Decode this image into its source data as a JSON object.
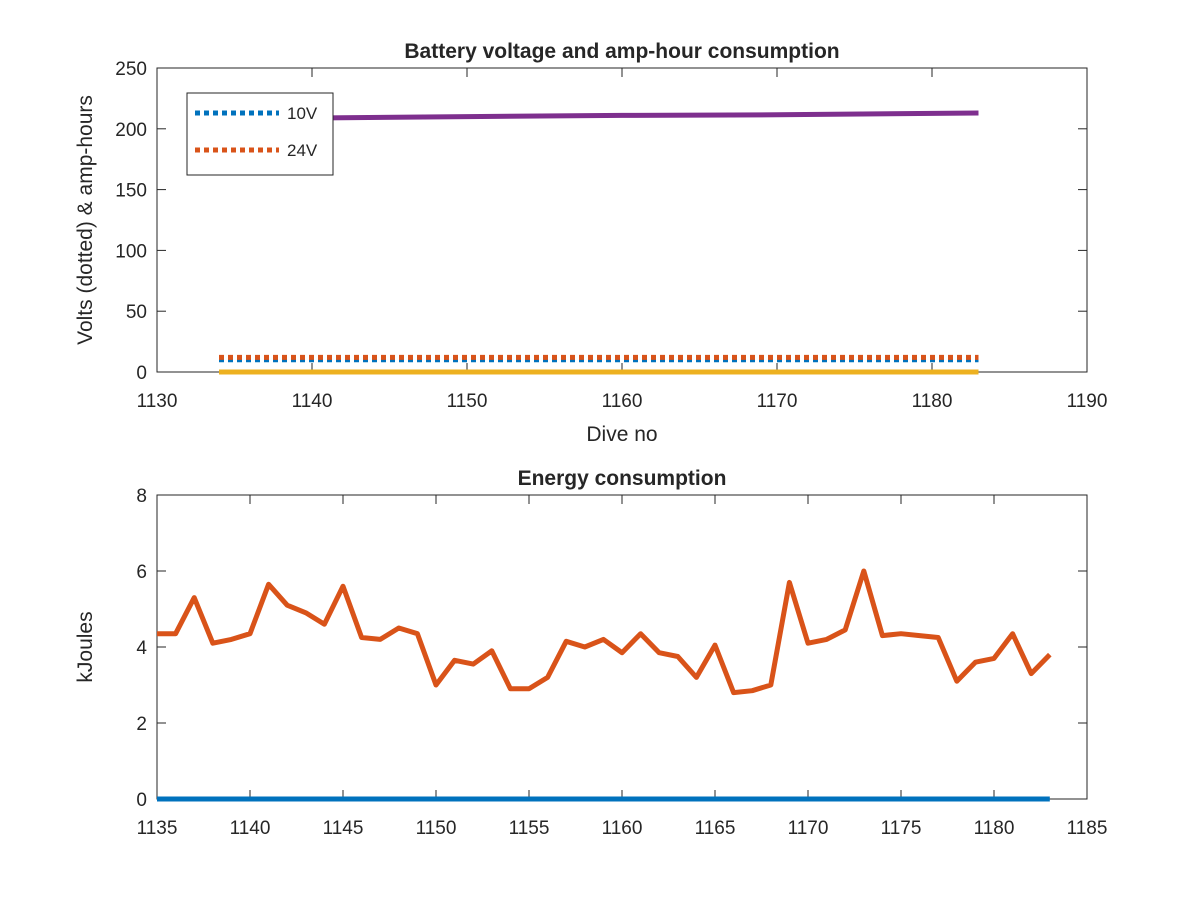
{
  "chart_data": [
    {
      "type": "line",
      "title": "Battery voltage and amp-hour consumption",
      "xlabel": "Dive no",
      "ylabel": "Volts (dotted) & amp-hours",
      "xlim": [
        1130,
        1190
      ],
      "ylim": [
        0,
        250
      ],
      "xticks": [
        "1130",
        "1140",
        "1150",
        "1160",
        "1170",
        "1180",
        "1190"
      ],
      "yticks": [
        "0",
        "50",
        "100",
        "150",
        "200",
        "250"
      ],
      "legend_position": "top-left",
      "series": [
        {
          "name": "10V",
          "color": "#0072BD",
          "style": "dotted",
          "x": [
            1134,
            1183
          ],
          "y": [
            10,
            10
          ]
        },
        {
          "name": "24V",
          "color": "#D95319",
          "style": "dotted",
          "x": [
            1134,
            1183
          ],
          "y": [
            12,
            12
          ]
        },
        {
          "color": "#EDB120",
          "style": "solid",
          "x": [
            1134,
            1183
          ],
          "y": [
            0,
            0
          ]
        },
        {
          "color": "#7E2F8E",
          "style": "solid",
          "x": [
            1141,
            1150,
            1160,
            1170,
            1183
          ],
          "y": [
            209,
            210,
            211,
            211.5,
            213
          ]
        }
      ]
    },
    {
      "type": "line",
      "title": "Energy consumption",
      "xlabel": "",
      "ylabel": "kJoules",
      "xlim": [
        1135,
        1185
      ],
      "ylim": [
        0,
        8
      ],
      "xticks": [
        "1135",
        "1140",
        "1145",
        "1150",
        "1155",
        "1160",
        "1165",
        "1170",
        "1175",
        "1180",
        "1185"
      ],
      "yticks": [
        "0",
        "2",
        "4",
        "6",
        "8"
      ],
      "series": [
        {
          "color": "#0072BD",
          "style": "solid",
          "x": [
            1135,
            1183
          ],
          "y": [
            0,
            0
          ]
        },
        {
          "color": "#D95319",
          "style": "solid",
          "x": [
            1135,
            1136,
            1137,
            1138,
            1139,
            1140,
            1141,
            1142,
            1143,
            1144,
            1145,
            1146,
            1147,
            1148,
            1149,
            1150,
            1151,
            1152,
            1153,
            1154,
            1155,
            1156,
            1157,
            1158,
            1159,
            1160,
            1161,
            1162,
            1163,
            1164,
            1165,
            1166,
            1167,
            1168,
            1169,
            1170,
            1171,
            1172,
            1173,
            1174,
            1175,
            1176,
            1177,
            1178,
            1179,
            1180,
            1181,
            1182,
            1183
          ],
          "y": [
            4.35,
            4.35,
            5.3,
            4.1,
            4.2,
            4.35,
            5.65,
            5.1,
            4.9,
            4.6,
            5.6,
            4.25,
            4.2,
            4.5,
            4.35,
            3.0,
            3.65,
            3.55,
            3.9,
            2.9,
            2.9,
            3.2,
            4.15,
            4.0,
            4.2,
            3.85,
            4.35,
            3.85,
            3.75,
            3.2,
            4.05,
            2.8,
            2.85,
            3.0,
            5.7,
            4.1,
            4.2,
            4.45,
            6.0,
            4.3,
            4.35,
            4.3,
            4.25,
            3.1,
            3.6,
            3.7,
            4.35,
            3.3,
            3.8
          ]
        }
      ]
    }
  ]
}
